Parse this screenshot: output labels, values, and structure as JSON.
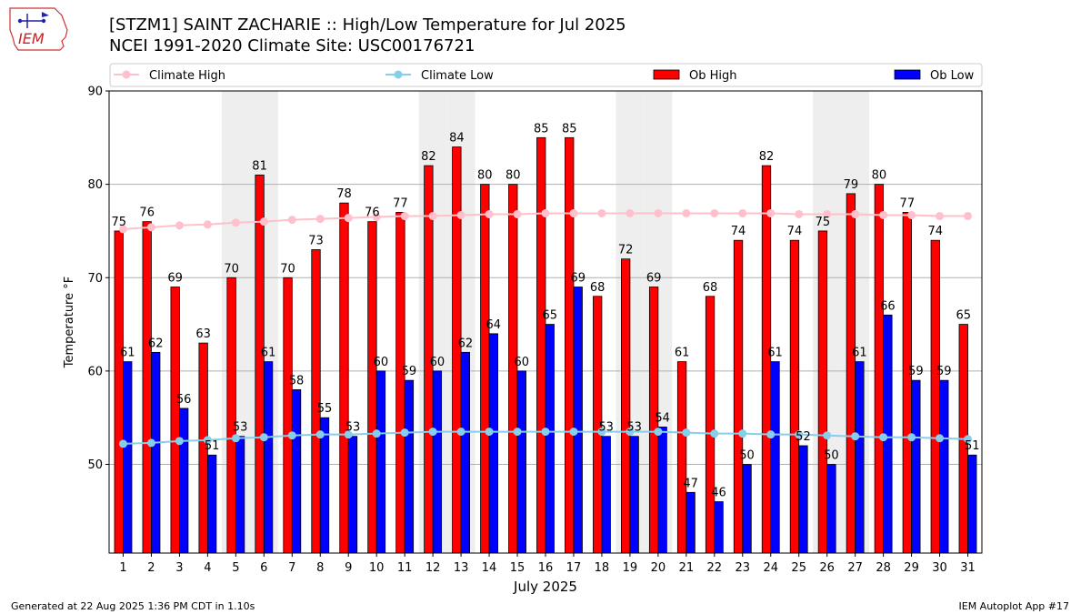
{
  "header": {
    "title": "[STZM1] SAINT ZACHARIE :: High/Low Temperature for Jul 2025",
    "subtitle": "NCEI 1991-2020 Climate Site: USC00176721",
    "logo_text": "IEM"
  },
  "footer": {
    "generated": "Generated at 22 Aug 2025 1:36 PM CDT in 1.10s",
    "app": "IEM Autoplot App #17"
  },
  "colors": {
    "ob_high": "#ff0000",
    "ob_low": "#0000ff",
    "climate_high": "#ffc0cb",
    "climate_low": "#87ceeb",
    "weekend_band": "#eeeeee"
  },
  "chart_data": {
    "type": "bar",
    "xlabel": "July 2025",
    "ylabel": "Temperature °F",
    "ylim": [
      40.5,
      90
    ],
    "yticks": [
      50,
      60,
      70,
      80,
      90
    ],
    "grid": "y",
    "legend": "top",
    "categories": [
      1,
      2,
      3,
      4,
      5,
      6,
      7,
      8,
      9,
      10,
      11,
      12,
      13,
      14,
      15,
      16,
      17,
      18,
      19,
      20,
      21,
      22,
      23,
      24,
      25,
      26,
      27,
      28,
      29,
      30,
      31
    ],
    "weekend_days": [
      5,
      6,
      12,
      13,
      19,
      20,
      26,
      27
    ],
    "series": [
      {
        "name": "Ob High",
        "kind": "bar",
        "values": [
          75,
          76,
          69,
          63,
          70,
          81,
          70,
          73,
          78,
          76,
          77,
          82,
          84,
          80,
          80,
          85,
          85,
          68,
          72,
          69,
          61,
          68,
          74,
          82,
          74,
          75,
          79,
          80,
          77,
          74,
          65
        ]
      },
      {
        "name": "Ob Low",
        "kind": "bar",
        "values": [
          61,
          62,
          56,
          51,
          53,
          61,
          58,
          55,
          53,
          60,
          59,
          60,
          62,
          64,
          60,
          65,
          69,
          53,
          53,
          54,
          47,
          46,
          50,
          61,
          52,
          50,
          61,
          66,
          59,
          59,
          51
        ]
      },
      {
        "name": "Climate High",
        "kind": "line",
        "values": [
          75.2,
          75.4,
          75.6,
          75.7,
          75.9,
          76.0,
          76.2,
          76.3,
          76.4,
          76.5,
          76.6,
          76.6,
          76.7,
          76.8,
          76.8,
          76.9,
          76.9,
          76.9,
          76.9,
          76.9,
          76.9,
          76.9,
          76.9,
          76.9,
          76.8,
          76.8,
          76.8,
          76.7,
          76.7,
          76.6,
          76.6
        ]
      },
      {
        "name": "Climate Low",
        "kind": "line",
        "values": [
          52.2,
          52.3,
          52.5,
          52.6,
          52.8,
          52.9,
          53.1,
          53.2,
          53.2,
          53.3,
          53.4,
          53.5,
          53.5,
          53.5,
          53.5,
          53.5,
          53.5,
          53.5,
          53.5,
          53.5,
          53.4,
          53.3,
          53.3,
          53.2,
          53.2,
          53.1,
          53.0,
          52.9,
          52.9,
          52.8,
          52.7
        ]
      }
    ]
  }
}
